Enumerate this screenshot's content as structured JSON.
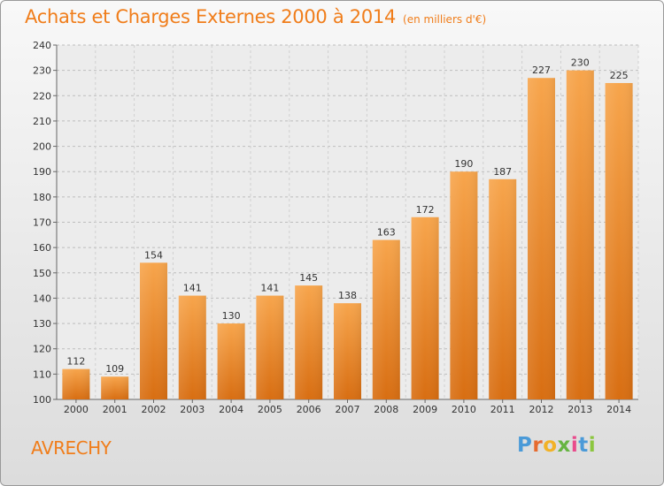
{
  "chart_data": {
    "type": "bar",
    "title": "Achats et Charges Externes 2000 à 2014",
    "subtitle": "(en milliers d'€)",
    "categories": [
      "2000",
      "2001",
      "2002",
      "2003",
      "2004",
      "2005",
      "2006",
      "2007",
      "2008",
      "2009",
      "2010",
      "2011",
      "2012",
      "2013",
      "2014"
    ],
    "values": [
      112,
      109,
      154,
      141,
      130,
      141,
      145,
      138,
      163,
      172,
      190,
      187,
      227,
      230,
      225
    ],
    "xlabel": "",
    "ylabel": "",
    "ylim": [
      100,
      240
    ],
    "yticks": [
      100,
      110,
      120,
      130,
      140,
      150,
      160,
      170,
      180,
      190,
      200,
      210,
      220,
      230,
      240
    ],
    "grid": true,
    "bar_color": "#f08a24",
    "legend": "none"
  },
  "commune": "AVRECHY",
  "logo": {
    "letters": [
      "P",
      "r",
      "o",
      "x",
      "i",
      "t",
      "i"
    ],
    "colors": [
      "#4a9ad8",
      "#e66b2f",
      "#f2b226",
      "#66b441",
      "#e94b8c",
      "#4a9ad8",
      "#8cc63f"
    ]
  }
}
